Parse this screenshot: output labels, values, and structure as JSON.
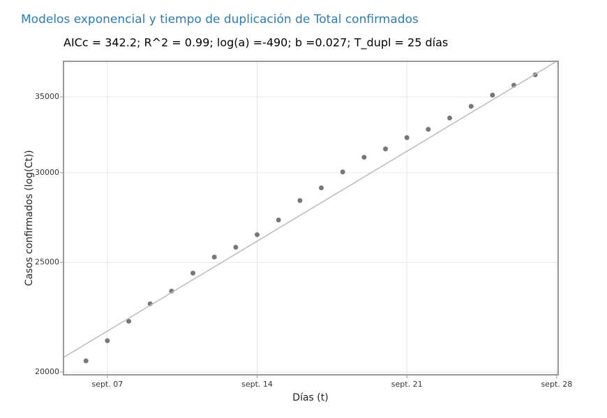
{
  "header": {
    "title": "Modelos exponencial y tiempo de duplicación de Total confirmados"
  },
  "chart_data": {
    "type": "scatter",
    "title": "AICc = 342.2; R^2 = 0.99; log(a) =-490; b =0.027; T_dupl = 25 días",
    "x_label": "Días (t)",
    "y_label": "Casos confirmados (log(Ct))",
    "log_y": true,
    "grid": true,
    "xlim": [
      4.95,
      28.07
    ],
    "ylim": [
      19890,
      37630
    ],
    "xticks": [
      {
        "value": 7,
        "label": "sept. 07"
      },
      {
        "value": 14,
        "label": "sept. 14"
      },
      {
        "value": 21,
        "label": "sept. 21"
      },
      {
        "value": 28,
        "label": "sept. 28"
      }
    ],
    "yticks": [
      20000,
      25000,
      30000,
      35000
    ],
    "series": [
      {
        "type": "scatter",
        "color": "#777777",
        "x": [
          6,
          7,
          8,
          9,
          10,
          11,
          12,
          13,
          14,
          15,
          16,
          17,
          18,
          19,
          20,
          21,
          22,
          23,
          24,
          25,
          26,
          27
        ],
        "values": [
          20460,
          21320,
          22180,
          22980,
          23580,
          24460,
          25270,
          25780,
          26450,
          27250,
          28350,
          29090,
          30050,
          30960,
          31490,
          32220,
          32770,
          33530,
          34340,
          35130,
          35840,
          36610
        ]
      },
      {
        "type": "line",
        "color": "#bbbbbb",
        "x": [
          4.95,
          28
        ],
        "values": [
          20605,
          37630
        ]
      }
    ]
  }
}
